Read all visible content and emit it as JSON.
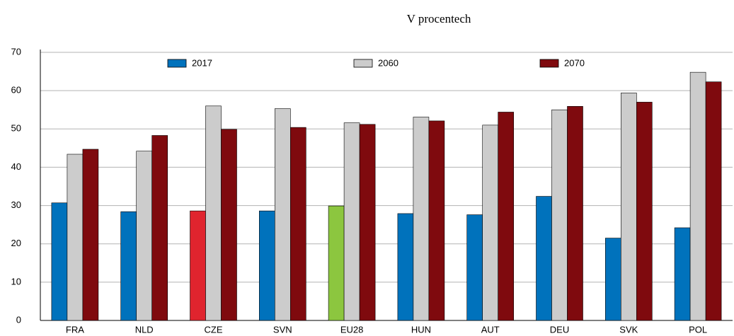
{
  "chart_data": {
    "type": "bar",
    "title": "V procentech",
    "categories": [
      "FRA",
      "NLD",
      "CZE",
      "SVN",
      "EU28",
      "HUN",
      "AUT",
      "DEU",
      "SVK",
      "POL"
    ],
    "series": [
      {
        "name": "2017",
        "color": "#0072bc",
        "colors": [
          "#0072bc",
          "#0072bc",
          "#e0242e",
          "#0072bc",
          "#8cc63f",
          "#0072bc",
          "#0072bc",
          "#0072bc",
          "#0072bc",
          "#0072bc"
        ],
        "values": [
          30.7,
          28.4,
          28.6,
          28.6,
          29.9,
          27.9,
          27.6,
          32.4,
          21.5,
          24.2
        ]
      },
      {
        "name": "2060",
        "color": "#cccccc",
        "values": [
          43.4,
          44.2,
          56.0,
          55.3,
          51.6,
          53.1,
          51.0,
          55.0,
          59.4,
          64.8
        ]
      },
      {
        "name": "2070",
        "color": "#7f0a0e",
        "values": [
          44.7,
          48.3,
          49.9,
          50.4,
          51.2,
          52.1,
          54.4,
          55.9,
          57.0,
          62.3
        ]
      }
    ],
    "ylim": [
      0,
      70
    ],
    "yticks": [
      0,
      10,
      20,
      30,
      40,
      50,
      60,
      70
    ],
    "grid": true,
    "legend": "top"
  }
}
